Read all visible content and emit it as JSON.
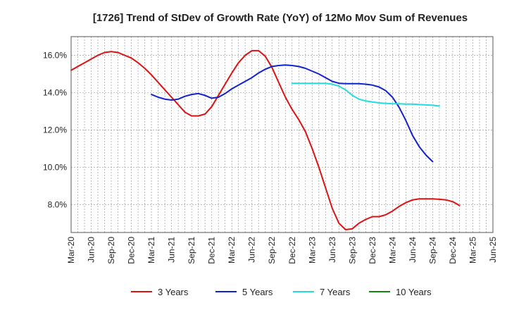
{
  "chart_data": {
    "type": "line",
    "title": "[1726]  Trend of StDev of Growth Rate (YoY) of 12Mo Mov Sum of Revenues",
    "xlabel": "",
    "ylabel": "",
    "ylim": [
      6.5,
      17.0
    ],
    "y_ticks": [
      8.0,
      10.0,
      12.0,
      14.0,
      16.0
    ],
    "y_tick_labels": [
      "8.0%",
      "10.0%",
      "12.0%",
      "14.0%",
      "16.0%"
    ],
    "x_range": [
      "2020-03",
      "2025-06"
    ],
    "x_tick_labels": [
      "Mar-20",
      "Jun-20",
      "Sep-20",
      "Dec-20",
      "Mar-21",
      "Jun-21",
      "Sep-21",
      "Dec-21",
      "Mar-22",
      "Jun-22",
      "Sep-22",
      "Dec-22",
      "Mar-23",
      "Jun-23",
      "Sep-23",
      "Dec-23",
      "Mar-24",
      "Jun-24",
      "Sep-24",
      "Dec-24",
      "Mar-25",
      "Jun-25"
    ],
    "grid": true,
    "legend_position": "bottom",
    "series": [
      {
        "name": "3 Years",
        "color": "#dd1111",
        "start": "2020-03",
        "values": [
          15.2,
          15.4,
          15.6,
          15.8,
          16.0,
          16.15,
          16.2,
          16.15,
          16.0,
          15.85,
          15.6,
          15.3,
          14.95,
          14.55,
          14.15,
          13.75,
          13.35,
          12.95,
          12.75,
          12.75,
          12.85,
          13.25,
          13.85,
          14.45,
          15.05,
          15.6,
          16.0,
          16.25,
          16.25,
          15.95,
          15.35,
          14.55,
          13.75,
          13.1,
          12.55,
          11.9,
          11.0,
          10.0,
          8.9,
          7.8,
          7.0,
          6.65,
          6.7,
          7.0,
          7.2,
          7.35,
          7.35,
          7.45,
          7.65,
          7.9,
          8.1,
          8.25,
          8.3,
          8.3,
          8.3,
          8.28,
          8.25,
          8.15,
          7.95
        ]
      },
      {
        "name": "5 Years",
        "color": "#1122cc",
        "start": "2021-03",
        "values": [
          13.9,
          13.75,
          13.65,
          13.6,
          13.65,
          13.8,
          13.9,
          13.95,
          13.85,
          13.7,
          13.75,
          13.95,
          14.2,
          14.4,
          14.6,
          14.8,
          15.05,
          15.25,
          15.4,
          15.45,
          15.48,
          15.45,
          15.4,
          15.3,
          15.15,
          15.0,
          14.8,
          14.6,
          14.5,
          14.48,
          14.48,
          14.48,
          14.45,
          14.4,
          14.3,
          14.1,
          13.75,
          13.2,
          12.5,
          11.7,
          11.1,
          10.65,
          10.3
        ]
      },
      {
        "name": "7 Years",
        "color": "#22dddd",
        "start": "2022-12",
        "values": [
          14.5,
          14.5,
          14.5,
          14.5,
          14.5,
          14.5,
          14.45,
          14.35,
          14.15,
          13.85,
          13.65,
          13.55,
          13.5,
          13.45,
          13.42,
          13.4,
          13.4,
          13.38,
          13.38,
          13.36,
          13.34,
          13.32,
          13.28
        ]
      },
      {
        "name": "10 Years",
        "color": "#118811",
        "start": "2025-03",
        "values": []
      }
    ]
  }
}
